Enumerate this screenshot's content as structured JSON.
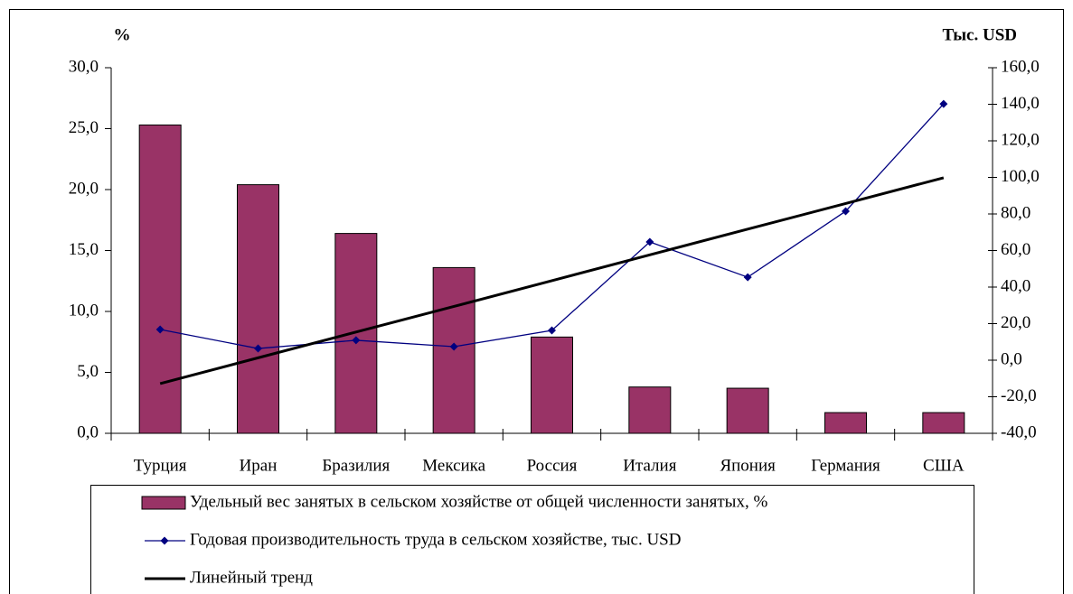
{
  "chart_data": {
    "type": "bar",
    "y_label": "%",
    "y2_label": "Тыс. USD",
    "categories": [
      "Турция",
      "Иран",
      "Бразилия",
      "Мексика",
      "Россия",
      "Италия",
      "Япония",
      "Германия",
      "США"
    ],
    "series": [
      {
        "name": "Удельный вес занятых в сельском хозяйстве от общей численности занятых, %",
        "type": "bar",
        "color": "#993366",
        "values": [
          25.3,
          20.4,
          16.4,
          13.6,
          7.9,
          3.8,
          3.7,
          1.7,
          1.7
        ]
      },
      {
        "name": "Годовая производительность труда в сельском хозяйстве, тыс. USD",
        "type": "line",
        "axis": "y2",
        "color": "#000080",
        "values": [
          16.8,
          6.4,
          10.9,
          7.4,
          16.3,
          64.7,
          45.4,
          81.5,
          140.2
        ]
      },
      {
        "name": "Линейный тренд",
        "type": "trend",
        "axis": "y2",
        "color": "#000000",
        "values": [
          -12.8,
          1.3,
          15.4,
          29.4,
          43.5,
          57.6,
          71.7,
          85.7,
          99.8
        ]
      }
    ],
    "ylim": [
      0,
      30
    ],
    "yticks": [
      {
        "value": 0,
        "label": "0,0"
      },
      {
        "value": 5,
        "label": "5,0"
      },
      {
        "value": 10,
        "label": "10,0"
      },
      {
        "value": 15,
        "label": "15,0"
      },
      {
        "value": 20,
        "label": "20,0"
      },
      {
        "value": 25,
        "label": "25,0"
      },
      {
        "value": 30,
        "label": "30,0"
      }
    ],
    "y2lim": [
      -40,
      160
    ],
    "y2ticks": [
      {
        "value": -40,
        "label": "-40,0"
      },
      {
        "value": -20,
        "label": "-20,0"
      },
      {
        "value": 0,
        "label": "0,0"
      },
      {
        "value": 20,
        "label": "20,0"
      },
      {
        "value": 40,
        "label": "40,0"
      },
      {
        "value": 60,
        "label": "60,0"
      },
      {
        "value": 80,
        "label": "80,0"
      },
      {
        "value": 100,
        "label": "100,0"
      },
      {
        "value": 120,
        "label": "120,0"
      },
      {
        "value": 140,
        "label": "140,0"
      },
      {
        "value": 160,
        "label": "160,0"
      }
    ],
    "grid": false
  }
}
